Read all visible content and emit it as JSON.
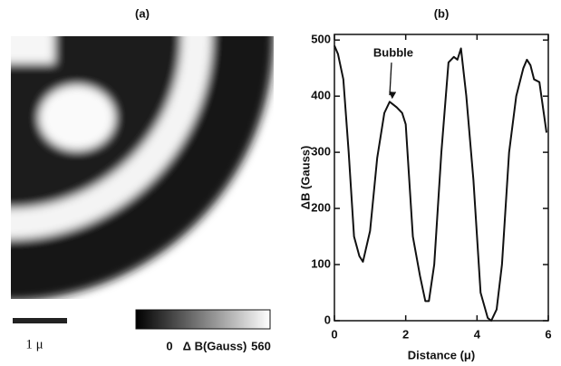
{
  "chart_data": [
    {
      "type": "image",
      "title": "(a)",
      "scale_bar_label": "1 μ",
      "colorbar": {
        "label": "Δ B(Gauss)",
        "ticks": [
          0,
          560
        ]
      }
    },
    {
      "type": "line",
      "title": "(b)",
      "xlabel": "Distance (μ)",
      "ylabel": "ΔB (Gauss)",
      "x": [
        0,
        0.1,
        0.25,
        0.4,
        0.55,
        0.7,
        0.8,
        1.0,
        1.2,
        1.4,
        1.55,
        1.65,
        1.75,
        1.9,
        2.0,
        2.2,
        2.4,
        2.55,
        2.65,
        2.8,
        3.0,
        3.2,
        3.35,
        3.45,
        3.55,
        3.7,
        3.9,
        4.1,
        4.3,
        4.4,
        4.55,
        4.7,
        4.9,
        5.1,
        5.3,
        5.4,
        5.5,
        5.6,
        5.75,
        5.85,
        5.95
      ],
      "series": [
        {
          "color": "#111111",
          "values": [
            490,
            475,
            430,
            300,
            150,
            115,
            105,
            160,
            290,
            370,
            390,
            385,
            380,
            370,
            350,
            150,
            80,
            35,
            35,
            100,
            300,
            460,
            470,
            465,
            485,
            400,
            250,
            50,
            5,
            0,
            20,
            100,
            300,
            400,
            450,
            465,
            455,
            430,
            425,
            380,
            335
          ]
        }
      ],
      "xlim": [
        0,
        6
      ],
      "ylim": [
        0,
        510
      ],
      "xticks": [
        0,
        2,
        4,
        6
      ],
      "yticks": [
        0,
        100,
        200,
        300,
        400,
        500
      ],
      "annotations": [
        {
          "text": "Bubble",
          "x": 1.55,
          "y": 392
        }
      ]
    }
  ]
}
